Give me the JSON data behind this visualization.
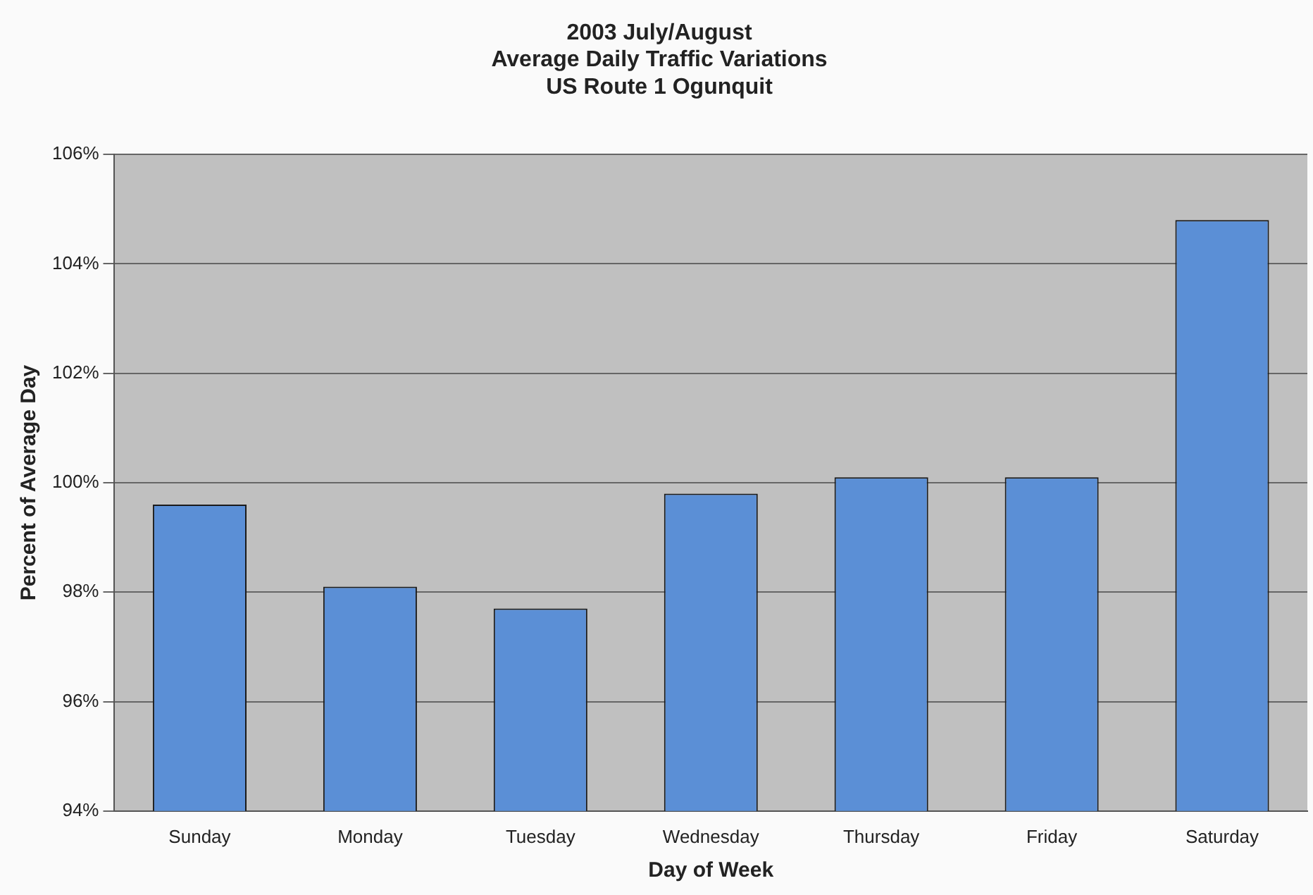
{
  "chart_data": {
    "type": "bar",
    "title": "2003 July/August\nAverage Daily Traffic Variations\nUS Route 1 Ogunquit",
    "xlabel": "Day of Week",
    "ylabel": "Percent of Average Day",
    "categories": [
      "Sunday",
      "Monday",
      "Tuesday",
      "Wednesday",
      "Thursday",
      "Friday",
      "Saturday"
    ],
    "values": [
      99.6,
      98.1,
      97.7,
      99.8,
      100.1,
      100.1,
      104.8
    ],
    "color": "#5b8fd6",
    "ylim": [
      94,
      106
    ],
    "yticks": [
      {
        "value": 94,
        "label": "94%"
      },
      {
        "value": 96,
        "label": "96%"
      },
      {
        "value": 98,
        "label": "98%"
      },
      {
        "value": 100,
        "label": "100%"
      },
      {
        "value": 102,
        "label": "102%"
      },
      {
        "value": 104,
        "label": "104%"
      },
      {
        "value": 106,
        "label": "106%"
      }
    ],
    "grid": "y"
  }
}
